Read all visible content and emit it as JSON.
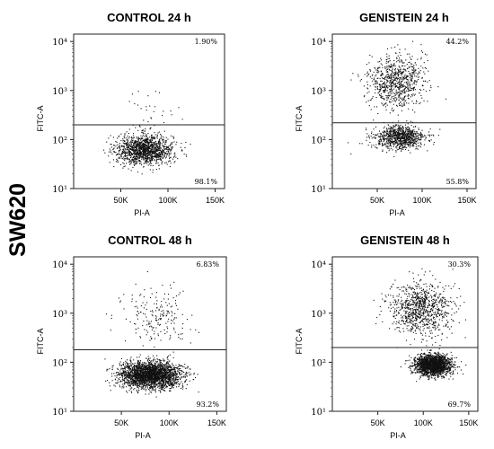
{
  "figure": {
    "row_label": "SW620"
  },
  "chart_data": [
    {
      "type": "scatter",
      "title": "CONTROL 24 h",
      "xlabel": "PI-A",
      "ylabel": "FITC-A",
      "x_ticks": [
        "50K",
        "100K",
        "150K"
      ],
      "y_ticks": [
        "10¹",
        "10²",
        "10³",
        "10⁴"
      ],
      "xlim": [
        0,
        160000
      ],
      "ylim_log10": [
        1,
        4.15
      ],
      "gate_y": 200,
      "quadrant_labels": {
        "upper_right": "1.90%",
        "lower_right": "98.1%"
      },
      "populations": [
        {
          "region": "lower",
          "x_center": 75000,
          "x_spread": 30000,
          "log10_y_center": 1.8,
          "log10_y_spread": 0.25,
          "count": 1400
        },
        {
          "region": "upper",
          "x_center": 80000,
          "x_spread": 35000,
          "log10_y_center": 2.6,
          "log10_y_spread": 0.4,
          "count": 30
        }
      ]
    },
    {
      "type": "scatter",
      "title": "GENISTEIN 24 h",
      "xlabel": "PI-A",
      "ylabel": "FITC-A",
      "x_ticks": [
        "50K",
        "100K",
        "150K"
      ],
      "y_ticks": [
        "10¹",
        "10²",
        "10³",
        "10⁴"
      ],
      "xlim": [
        0,
        160000
      ],
      "ylim_log10": [
        1,
        4.15
      ],
      "gate_y": 220,
      "quadrant_labels": {
        "upper_right": "44.2%",
        "lower_right": "55.8%"
      },
      "populations": [
        {
          "region": "lower",
          "x_center": 75000,
          "x_spread": 28000,
          "log10_y_center": 2.05,
          "log10_y_spread": 0.2,
          "count": 900
        },
        {
          "region": "upper",
          "x_center": 70000,
          "x_spread": 30000,
          "log10_y_center": 3.2,
          "log10_y_spread": 0.45,
          "count": 800
        }
      ]
    },
    {
      "type": "scatter",
      "title": "CONTROL 48 h",
      "xlabel": "PI-A",
      "ylabel": "FITC-A",
      "x_ticks": [
        "50K",
        "100K",
        "150K"
      ],
      "y_ticks": [
        "10¹",
        "10²",
        "10³",
        "10⁴"
      ],
      "xlim": [
        0,
        160000
      ],
      "ylim_log10": [
        1,
        4.15
      ],
      "gate_y": 180,
      "quadrant_labels": {
        "upper_right": "6.83%",
        "lower_right": "93.2%"
      },
      "populations": [
        {
          "region": "lower",
          "x_center": 80000,
          "x_spread": 32000,
          "log10_y_center": 1.75,
          "log10_y_spread": 0.22,
          "count": 2600
        },
        {
          "region": "upper",
          "x_center": 85000,
          "x_spread": 35000,
          "log10_y_center": 2.9,
          "log10_y_spread": 0.5,
          "count": 200
        }
      ]
    },
    {
      "type": "scatter",
      "title": "GENISTEIN 48 h",
      "xlabel": "PI-A",
      "ylabel": "FITC-A",
      "x_ticks": [
        "50K",
        "100K",
        "150K"
      ],
      "y_ticks": [
        "10¹",
        "10²",
        "10³",
        "10⁴"
      ],
      "xlim": [
        0,
        160000
      ],
      "ylim_log10": [
        1,
        4.15
      ],
      "gate_y": 200,
      "quadrant_labels": {
        "upper_right": "30.3%",
        "lower_right": "69.7%"
      },
      "populations": [
        {
          "region": "lower",
          "x_center": 110000,
          "x_spread": 20000,
          "log10_y_center": 1.95,
          "log10_y_spread": 0.17,
          "count": 2000
        },
        {
          "region": "upper",
          "x_center": 95000,
          "x_spread": 35000,
          "log10_y_center": 3.1,
          "log10_y_spread": 0.45,
          "count": 900
        }
      ]
    }
  ]
}
